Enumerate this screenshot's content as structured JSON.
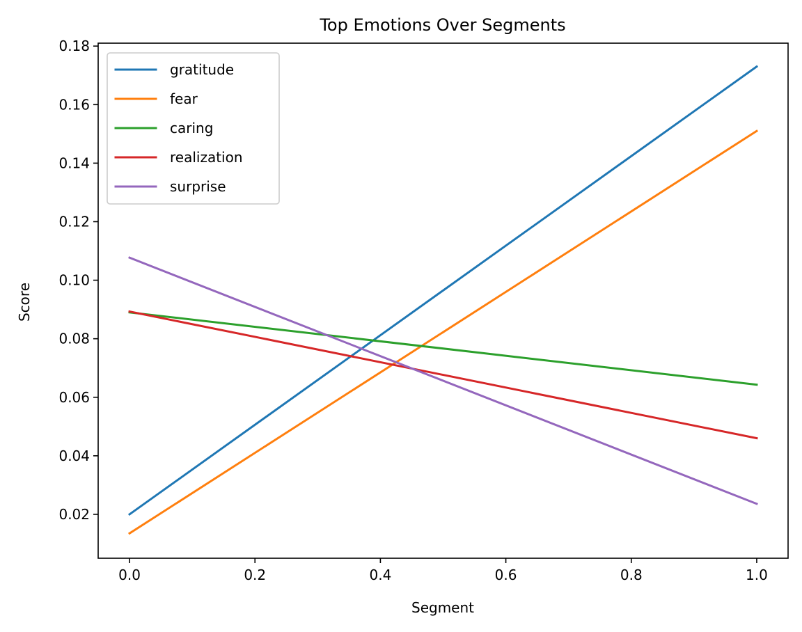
{
  "chart_data": {
    "type": "line",
    "title": "Top Emotions Over Segments",
    "xlabel": "Segment",
    "ylabel": "Score",
    "x": [
      0.0,
      1.0
    ],
    "xlim": [
      -0.05,
      1.05
    ],
    "ylim": [
      0.005,
      0.181
    ],
    "xticks": [
      0.0,
      0.2,
      0.4,
      0.6,
      0.8,
      1.0
    ],
    "xtick_labels": [
      "0.0",
      "0.2",
      "0.4",
      "0.6",
      "0.8",
      "1.0"
    ],
    "yticks": [
      0.02,
      0.04,
      0.06,
      0.08,
      0.1,
      0.12,
      0.14,
      0.16,
      0.18
    ],
    "ytick_labels": [
      "0.02",
      "0.04",
      "0.06",
      "0.08",
      "0.10",
      "0.12",
      "0.14",
      "0.16",
      "0.18"
    ],
    "grid": false,
    "legend_position": "upper-left",
    "series": [
      {
        "name": "gratitude",
        "values": [
          0.02,
          0.173
        ],
        "color": "#1f77b4"
      },
      {
        "name": "fear",
        "values": [
          0.0135,
          0.151
        ],
        "color": "#ff7f0e"
      },
      {
        "name": "caring",
        "values": [
          0.089,
          0.0643
        ],
        "color": "#2ca02c"
      },
      {
        "name": "realization",
        "values": [
          0.0893,
          0.046
        ],
        "color": "#d62728"
      },
      {
        "name": "surprise",
        "values": [
          0.1077,
          0.0236
        ],
        "color": "#9467bd"
      }
    ]
  }
}
